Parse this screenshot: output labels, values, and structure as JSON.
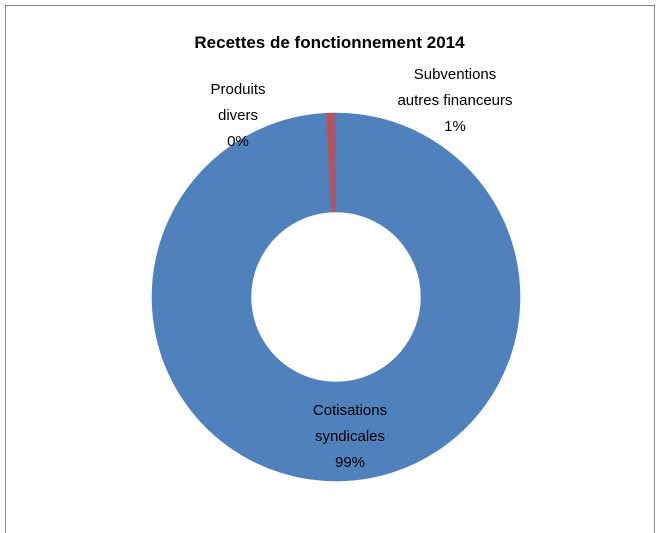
{
  "chart_data": {
    "type": "donut",
    "title": "Recettes de fonctionnement 2014",
    "categories": [
      "Cotisations syndicales",
      "Subventions autres financeurs",
      "Produits divers"
    ],
    "values": [
      99.2,
      0.6,
      0.2
    ],
    "value_labels": [
      "99%",
      "1%",
      "0%"
    ],
    "colors": [
      "#4f81bd",
      "#c0504d",
      "#8064a2"
    ]
  }
}
